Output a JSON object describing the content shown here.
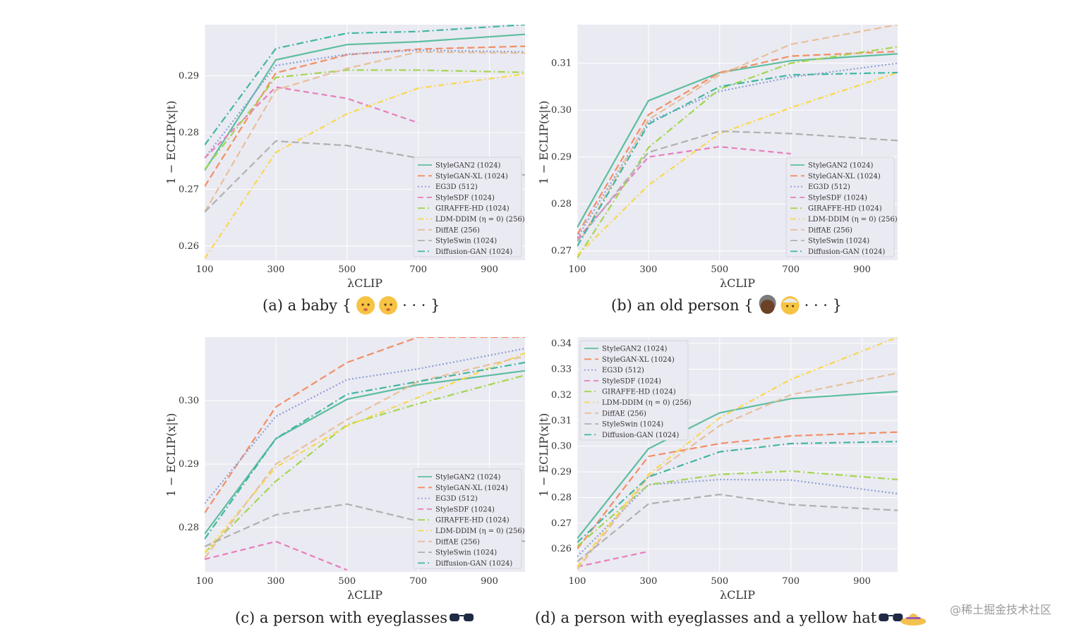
{
  "series_styles": [
    {
      "name": "StyleGAN2 (1024)",
      "color": "#5DBE9F",
      "dash": ""
    },
    {
      "name": "StyleGAN-XL (1024)",
      "color": "#F28E65",
      "dash": "10 5"
    },
    {
      "name": "EG3D (512)",
      "color": "#8C9ED6",
      "dash": "2 3"
    },
    {
      "name": "StyleSDF (1024)",
      "color": "#E87DBB",
      "dash": "8 5"
    },
    {
      "name": "GIRAFFE-HD (1024)",
      "color": "#A4D54F",
      "dash": "10 4 2 4"
    },
    {
      "name": "LDM-DDIM (η = 0) (256)",
      "color": "#F9D84B",
      "dash": "8 4 2 4"
    },
    {
      "name": "DiffAE (256)",
      "color": "#E6C09A",
      "dash": "10 5"
    },
    {
      "name": "StyleSwin (1024)",
      "color": "#B0B0B0",
      "dash": "10 5"
    },
    {
      "name": "Diffusion-GAN (1024)",
      "color": "#40B6A0",
      "dash": "10 4 2 4"
    }
  ],
  "watermark": "@稀土掘金技术社区",
  "chart_data": [
    {
      "type": "line",
      "panel": "a",
      "caption": "(a) a baby {",
      "caption_tail": "· · · }",
      "caption_emoji": [
        "baby-emoji",
        "baby-emoji"
      ],
      "xlabel": "λCLIP",
      "ylabel": "1 − ECLIP(x|t)",
      "x": [
        100,
        300,
        500,
        700,
        1000
      ],
      "xticks": [
        "100",
        "300",
        "500",
        "700",
        "900"
      ],
      "xtick_values": [
        100,
        300,
        500,
        700,
        900
      ],
      "ylim": [
        0.2575,
        0.299
      ],
      "yticks": [
        "0.26",
        "0.27",
        "0.28",
        "0.29"
      ],
      "ytick_values": [
        0.26,
        0.27,
        0.28,
        0.29
      ],
      "legend_position": "lower-right",
      "series": [
        {
          "name": "StyleGAN2 (1024)",
          "values": [
            0.2733,
            0.2928,
            0.2955,
            0.296,
            0.2973
          ]
        },
        {
          "name": "StyleGAN-XL (1024)",
          "values": [
            0.2705,
            0.2905,
            0.2937,
            0.2947,
            0.2952
          ]
        },
        {
          "name": "EG3D (512)",
          "values": [
            0.2755,
            0.2918,
            0.2938,
            0.2945,
            0.2942
          ]
        },
        {
          "name": "StyleSDF (1024)",
          "values": [
            0.2755,
            0.288,
            0.286,
            0.2817,
            null
          ]
        },
        {
          "name": "GIRAFFE-HD (1024)",
          "values": [
            0.2735,
            0.2897,
            0.291,
            0.291,
            0.2906
          ]
        },
        {
          "name": "LDM-DDIM (η = 0) (256)",
          "values": [
            0.2578,
            0.2765,
            0.2833,
            0.2878,
            0.2903
          ]
        },
        {
          "name": "DiffAE (256)",
          "values": [
            0.266,
            0.2875,
            0.2913,
            0.2942,
            0.294
          ]
        },
        {
          "name": "StyleSwin (1024)",
          "values": [
            0.266,
            0.2785,
            0.2777,
            0.2755,
            0.2725
          ]
        },
        {
          "name": "Diffusion-GAN (1024)",
          "values": [
            0.2778,
            0.2948,
            0.2975,
            0.2978,
            0.299
          ]
        }
      ]
    },
    {
      "type": "line",
      "panel": "b",
      "caption": "(b) an old person {",
      "caption_tail": "· · · }",
      "caption_emoji": [
        "old-woman-emoji",
        "old-man-emoji"
      ],
      "xlabel": "λCLIP",
      "ylabel": "1 − ECLIP(x|t)",
      "x": [
        100,
        300,
        500,
        700,
        1000
      ],
      "xticks": [
        "100",
        "300",
        "500",
        "700",
        "900"
      ],
      "xtick_values": [
        100,
        300,
        500,
        700,
        900
      ],
      "ylim": [
        0.268,
        0.3182
      ],
      "yticks": [
        "0.27",
        "0.28",
        "0.29",
        "0.30",
        "0.31"
      ],
      "ytick_values": [
        0.27,
        0.28,
        0.29,
        0.3,
        0.31
      ],
      "legend_position": "lower-right",
      "series": [
        {
          "name": "StyleGAN2 (1024)",
          "values": [
            0.275,
            0.302,
            0.308,
            0.3105,
            0.312
          ]
        },
        {
          "name": "StyleGAN-XL (1024)",
          "values": [
            0.2735,
            0.299,
            0.308,
            0.3115,
            0.3125
          ]
        },
        {
          "name": "EG3D (512)",
          "values": [
            0.2728,
            0.2975,
            0.304,
            0.307,
            0.31
          ]
        },
        {
          "name": "StyleSDF (1024)",
          "values": [
            0.2725,
            0.29,
            0.2922,
            0.2907,
            null
          ]
        },
        {
          "name": "GIRAFFE-HD (1024)",
          "values": [
            0.2685,
            0.292,
            0.3045,
            0.31,
            0.3135
          ]
        },
        {
          "name": "LDM-DDIM (η = 0) (256)",
          "values": [
            0.269,
            0.284,
            0.295,
            0.3005,
            0.308
          ]
        },
        {
          "name": "DiffAE (256)",
          "values": [
            0.271,
            0.298,
            0.3075,
            0.314,
            0.3182
          ]
        },
        {
          "name": "StyleSwin (1024)",
          "values": [
            0.272,
            0.291,
            0.2955,
            0.295,
            0.2935
          ]
        },
        {
          "name": "Diffusion-GAN (1024)",
          "values": [
            0.271,
            0.297,
            0.305,
            0.3075,
            0.308
          ]
        }
      ]
    },
    {
      "type": "line",
      "panel": "c",
      "caption": "(c) a person with eyeglasses",
      "caption_tail": "",
      "caption_emoji": [
        "glasses-emoji"
      ],
      "xlabel": "λCLIP",
      "ylabel": "1 − ECLIP(x|t)",
      "x": [
        100,
        300,
        500,
        700,
        1000
      ],
      "xticks": [
        "100",
        "300",
        "500",
        "700",
        "900"
      ],
      "xtick_values": [
        100,
        300,
        500,
        700,
        900
      ],
      "ylim": [
        0.273,
        0.31
      ],
      "yticks": [
        "0.28",
        "0.29",
        "0.30"
      ],
      "ytick_values": [
        0.28,
        0.29,
        0.3
      ],
      "legend_position": "lower-right",
      "series": [
        {
          "name": "StyleGAN2 (1024)",
          "values": [
            0.279,
            0.294,
            0.3002,
            0.3025,
            0.3047
          ]
        },
        {
          "name": "StyleGAN-XL (1024)",
          "values": [
            0.2823,
            0.299,
            0.306,
            0.31,
            0.31
          ]
        },
        {
          "name": "EG3D (512)",
          "values": [
            0.2838,
            0.2975,
            0.3033,
            0.305,
            0.3082
          ]
        },
        {
          "name": "StyleSDF (1024)",
          "values": [
            0.275,
            0.2778,
            0.2733,
            null,
            null
          ]
        },
        {
          "name": "GIRAFFE-HD (1024)",
          "values": [
            0.276,
            0.2873,
            0.2962,
            0.2995,
            0.304
          ]
        },
        {
          "name": "LDM-DDIM (η = 0) (256)",
          "values": [
            0.276,
            0.2895,
            0.296,
            0.3005,
            0.3075
          ]
        },
        {
          "name": "DiffAE (256)",
          "values": [
            0.2752,
            0.29,
            0.297,
            0.303,
            0.307
          ]
        },
        {
          "name": "StyleSwin (1024)",
          "values": [
            0.277,
            0.282,
            0.2837,
            0.281,
            0.2778
          ]
        },
        {
          "name": "Diffusion-GAN (1024)",
          "values": [
            0.2782,
            0.294,
            0.301,
            0.303,
            0.306
          ]
        }
      ]
    },
    {
      "type": "line",
      "panel": "d",
      "caption": "(d) a person with eyeglasses and a yellow hat",
      "caption_tail": "",
      "caption_emoji": [
        "glasses-emoji",
        "hat-emoji"
      ],
      "xlabel": "λCLIP",
      "ylabel": "1 − ECLIP(x|t)",
      "x": [
        100,
        300,
        500,
        700,
        1000
      ],
      "xticks": [
        "100",
        "300",
        "500",
        "700",
        "900"
      ],
      "xtick_values": [
        100,
        300,
        500,
        700,
        900
      ],
      "ylim": [
        0.251,
        0.3425
      ],
      "yticks": [
        "0.26",
        "0.27",
        "0.28",
        "0.29",
        "0.30",
        "0.31",
        "0.32",
        "0.33",
        "0.34"
      ],
      "ytick_values": [
        0.26,
        0.27,
        0.28,
        0.29,
        0.3,
        0.31,
        0.32,
        0.33,
        0.34
      ],
      "legend_position": "upper-left",
      "series": [
        {
          "name": "StyleGAN2 (1024)",
          "values": [
            0.264,
            0.299,
            0.313,
            0.3185,
            0.3213
          ]
        },
        {
          "name": "StyleGAN-XL (1024)",
          "values": [
            0.26,
            0.296,
            0.301,
            0.304,
            0.3055
          ]
        },
        {
          "name": "EG3D (512)",
          "values": [
            0.257,
            0.285,
            0.287,
            0.2868,
            0.2815
          ]
        },
        {
          "name": "StyleSDF (1024)",
          "values": [
            0.253,
            0.259,
            null,
            null,
            null
          ]
        },
        {
          "name": "GIRAFFE-HD (1024)",
          "values": [
            0.261,
            0.285,
            0.289,
            0.2903,
            0.287
          ]
        },
        {
          "name": "LDM-DDIM (η = 0) (256)",
          "values": [
            0.253,
            0.289,
            0.311,
            0.326,
            0.3425
          ]
        },
        {
          "name": "DiffAE (256)",
          "values": [
            0.252,
            0.288,
            0.308,
            0.32,
            0.3285
          ]
        },
        {
          "name": "StyleSwin (1024)",
          "values": [
            0.255,
            0.2775,
            0.2812,
            0.2772,
            0.275
          ]
        },
        {
          "name": "Diffusion-GAN (1024)",
          "values": [
            0.2625,
            0.288,
            0.2978,
            0.301,
            0.3018
          ]
        }
      ]
    }
  ]
}
